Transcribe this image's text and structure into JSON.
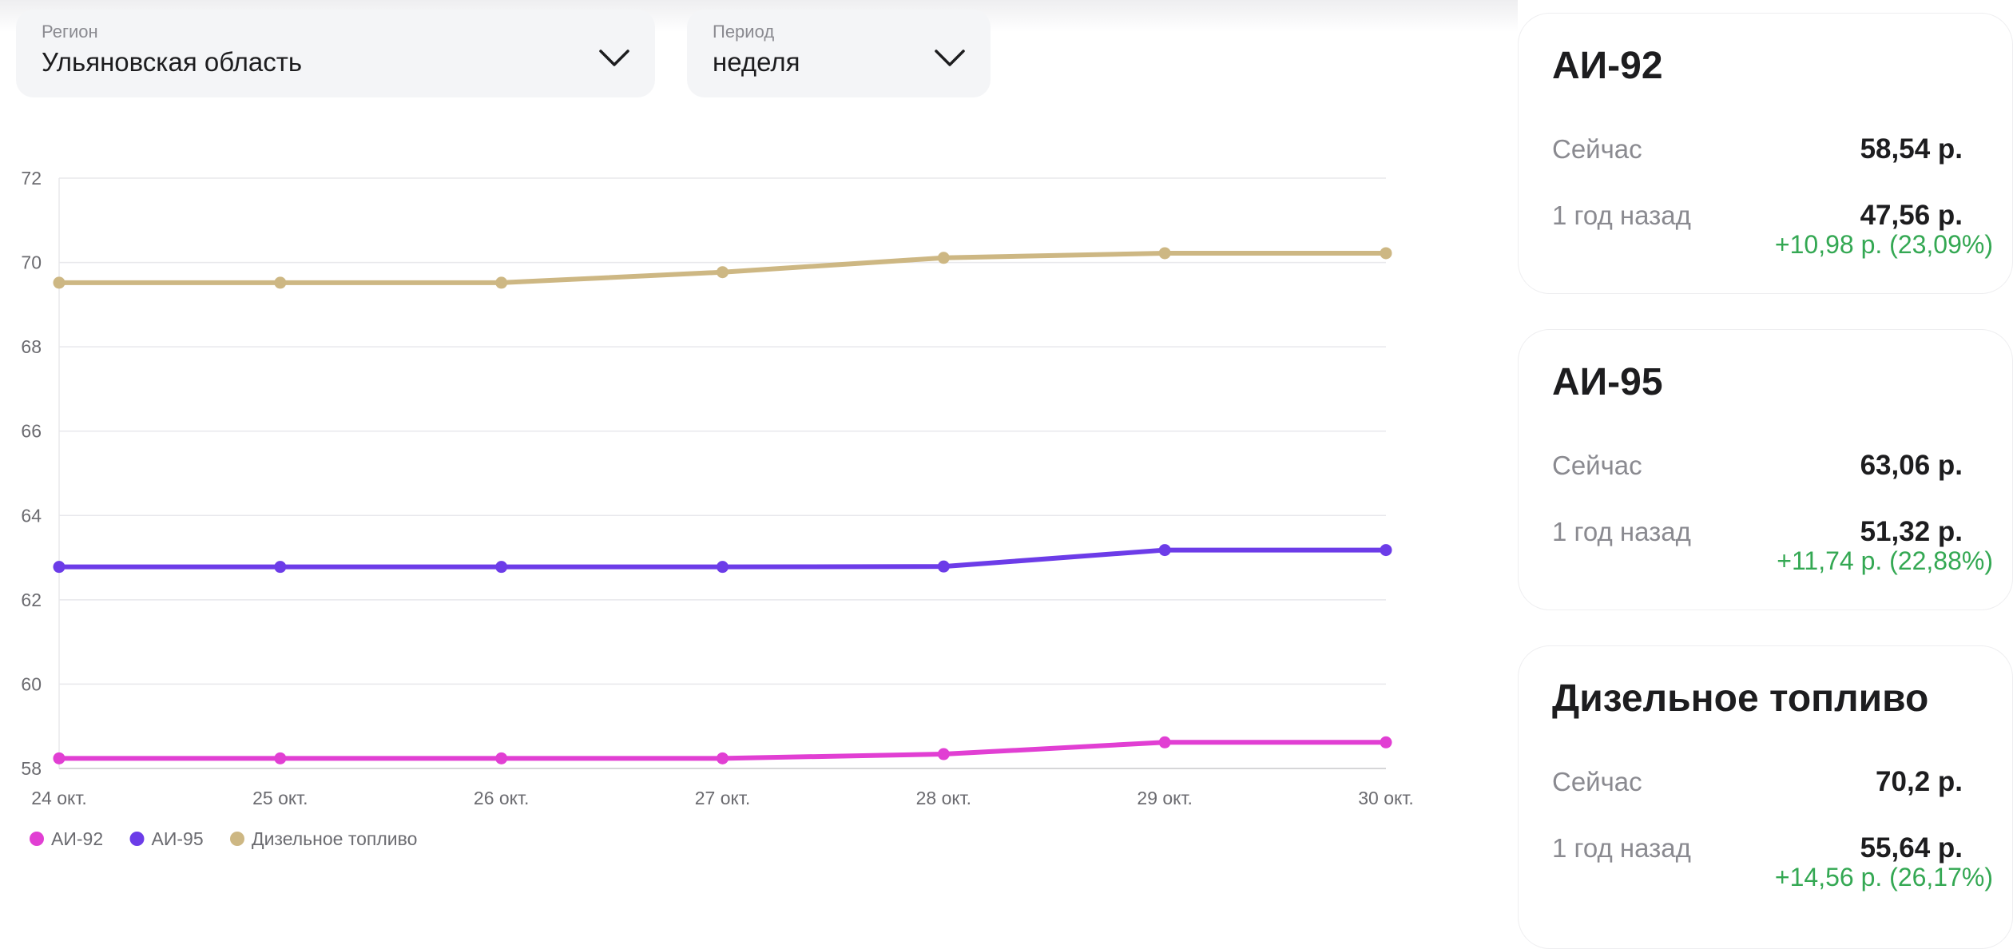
{
  "filters": {
    "region": {
      "label": "Регион",
      "value": "Ульяновская область"
    },
    "period": {
      "label": "Период",
      "value": "неделя"
    }
  },
  "chart_data": {
    "type": "line",
    "categories": [
      "24 окт.",
      "25 окт.",
      "26 окт.",
      "27 окт.",
      "28 окт.",
      "29 окт.",
      "30 окт."
    ],
    "ylim": [
      58,
      72
    ],
    "yticks": [
      58,
      60,
      62,
      64,
      66,
      68,
      70,
      72
    ],
    "grid": true,
    "legend_position": "bottom-left",
    "series": [
      {
        "name": "АИ-92",
        "color": "#e13fd3",
        "values": [
          58.24,
          58.24,
          58.24,
          58.24,
          58.34,
          58.62,
          58.62
        ]
      },
      {
        "name": "АИ-95",
        "color": "#6c3ce8",
        "values": [
          62.78,
          62.78,
          62.78,
          62.78,
          62.79,
          63.18,
          63.18
        ]
      },
      {
        "name": "Дизельное топливо",
        "color": "#cdb783",
        "values": [
          69.52,
          69.52,
          69.52,
          69.77,
          70.11,
          70.22,
          70.22
        ]
      }
    ]
  },
  "cards": [
    {
      "title": "АИ-92",
      "now_label": "Сейчас",
      "now_value": "58,54 р.",
      "ago_label": "1 год назад",
      "ago_value": "47,56 р.",
      "delta": "+10,98 р. (23,09%)"
    },
    {
      "title": "АИ-95",
      "now_label": "Сейчас",
      "now_value": "63,06 р.",
      "ago_label": "1 год назад",
      "ago_value": "51,32 р.",
      "delta": "+11,74 р. (22,88%)"
    },
    {
      "title": "Дизельное топливо",
      "now_label": "Сейчас",
      "now_value": "70,2 р.",
      "ago_label": "1 год назад",
      "ago_value": "55,64 р.",
      "delta": "+14,56 р. (26,17%)"
    }
  ]
}
